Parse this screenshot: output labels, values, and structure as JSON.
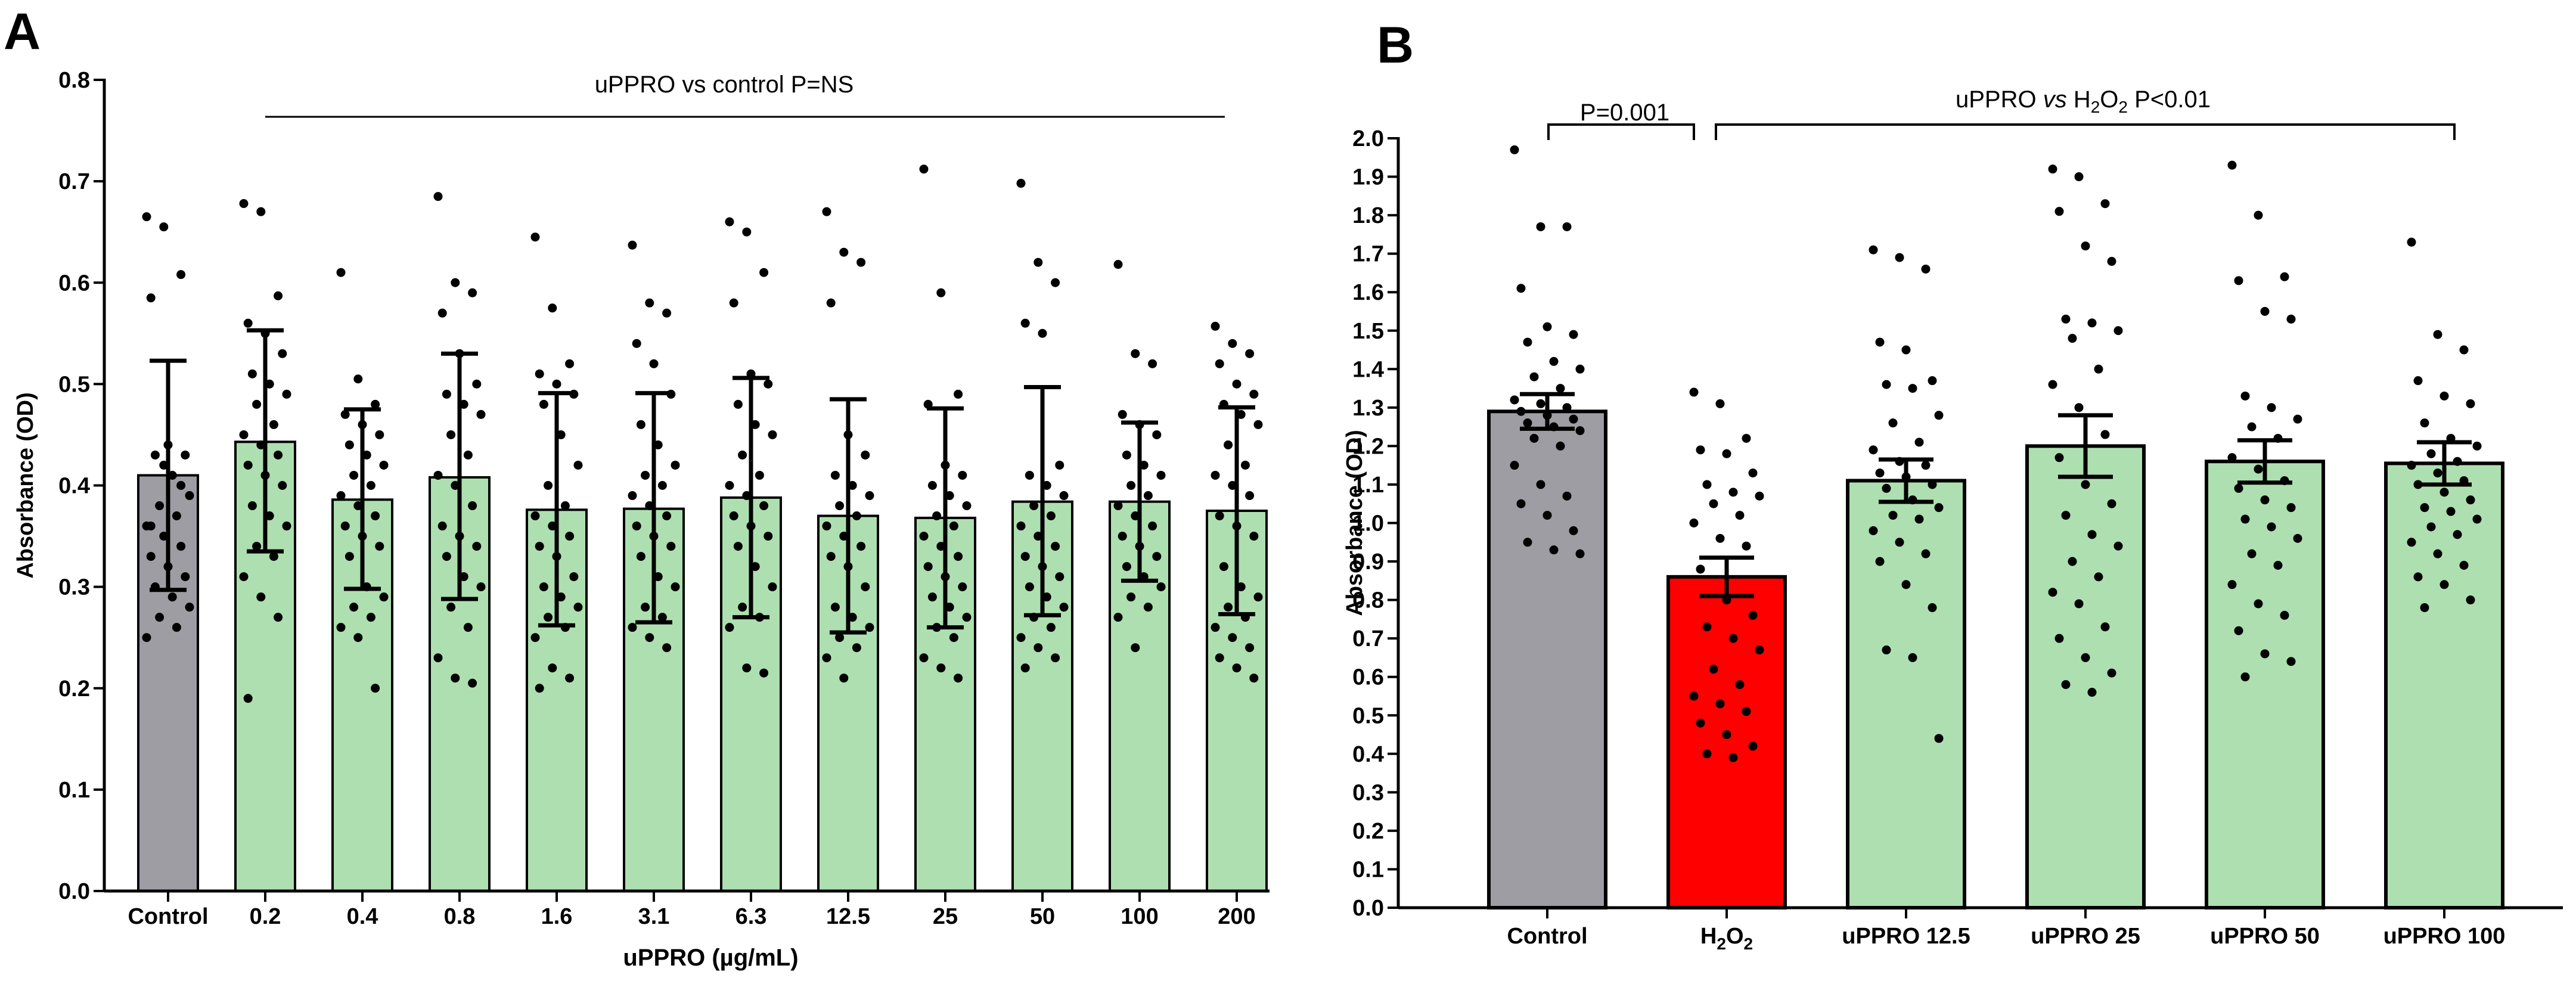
{
  "figure": {
    "panel_a_letter": "A",
    "panel_b_letter": "B"
  },
  "chart_data": [
    {
      "panel": "A",
      "type": "bar",
      "ylabel": "Absorbance (OD)",
      "xlabel": "uPPRO (µg/mL)",
      "ylim": [
        0,
        0.8
      ],
      "yticks": [
        "0.0",
        "0.1",
        "0.2",
        "0.3",
        "0.4",
        "0.5",
        "0.6",
        "0.7",
        "0.8"
      ],
      "categories": [
        "Control",
        "0.2",
        "0.4",
        "0.8",
        "1.6",
        "3.1",
        "6.3",
        "12.5",
        "25",
        "50",
        "100",
        "200"
      ],
      "values": [
        0.41,
        0.443,
        0.386,
        0.408,
        0.376,
        0.377,
        0.388,
        0.37,
        0.368,
        0.384,
        0.384,
        0.375
      ],
      "error_low": [
        0.297,
        0.335,
        0.298,
        0.288,
        0.262,
        0.265,
        0.27,
        0.255,
        0.26,
        0.272,
        0.306,
        0.273
      ],
      "error_high": [
        0.523,
        0.553,
        0.475,
        0.53,
        0.491,
        0.491,
        0.506,
        0.485,
        0.476,
        0.497,
        0.462,
        0.477
      ],
      "bar_colors": [
        "#9e9da3",
        "#aedfb0",
        "#aedfb0",
        "#aedfb0",
        "#aedfb0",
        "#aedfb0",
        "#aedfb0",
        "#aedfb0",
        "#aedfb0",
        "#aedfb0",
        "#aedfb0",
        "#aedfb0"
      ],
      "annotation": "uPPRO vs control P=NS",
      "points": [
        [
          0.665,
          0.655,
          0.608,
          0.585,
          0.44,
          0.43,
          0.43,
          0.41,
          0.39,
          0.38,
          0.37,
          0.36,
          0.35,
          0.34,
          0.33,
          0.32,
          0.31,
          0.3,
          0.29,
          0.28,
          0.27,
          0.26,
          0.25,
          0.42,
          0.4,
          0.36
        ],
        [
          0.678,
          0.67,
          0.587,
          0.56,
          0.55,
          0.53,
          0.51,
          0.5,
          0.49,
          0.48,
          0.46,
          0.45,
          0.44,
          0.43,
          0.42,
          0.41,
          0.4,
          0.38,
          0.37,
          0.36,
          0.34,
          0.33,
          0.31,
          0.29,
          0.27,
          0.19
        ],
        [
          0.61,
          0.505,
          0.48,
          0.47,
          0.46,
          0.45,
          0.44,
          0.43,
          0.42,
          0.41,
          0.4,
          0.39,
          0.38,
          0.37,
          0.36,
          0.35,
          0.34,
          0.33,
          0.3,
          0.29,
          0.28,
          0.27,
          0.26,
          0.25,
          0.2
        ],
        [
          0.685,
          0.6,
          0.59,
          0.57,
          0.53,
          0.5,
          0.49,
          0.48,
          0.47,
          0.45,
          0.43,
          0.41,
          0.4,
          0.38,
          0.36,
          0.35,
          0.34,
          0.33,
          0.31,
          0.3,
          0.28,
          0.26,
          0.23,
          0.21,
          0.205
        ],
        [
          0.645,
          0.575,
          0.52,
          0.51,
          0.5,
          0.49,
          0.48,
          0.45,
          0.42,
          0.4,
          0.38,
          0.37,
          0.36,
          0.35,
          0.34,
          0.33,
          0.31,
          0.3,
          0.29,
          0.28,
          0.27,
          0.26,
          0.25,
          0.22,
          0.21,
          0.2
        ],
        [
          0.637,
          0.58,
          0.57,
          0.54,
          0.52,
          0.49,
          0.46,
          0.44,
          0.42,
          0.41,
          0.4,
          0.39,
          0.38,
          0.37,
          0.36,
          0.35,
          0.34,
          0.33,
          0.31,
          0.3,
          0.28,
          0.27,
          0.26,
          0.25,
          0.24
        ],
        [
          0.66,
          0.65,
          0.61,
          0.58,
          0.51,
          0.5,
          0.48,
          0.46,
          0.45,
          0.43,
          0.41,
          0.4,
          0.39,
          0.38,
          0.37,
          0.36,
          0.35,
          0.34,
          0.32,
          0.3,
          0.28,
          0.27,
          0.26,
          0.22,
          0.215
        ],
        [
          0.67,
          0.63,
          0.62,
          0.58,
          0.45,
          0.43,
          0.41,
          0.4,
          0.39,
          0.38,
          0.37,
          0.36,
          0.35,
          0.34,
          0.33,
          0.32,
          0.3,
          0.28,
          0.27,
          0.26,
          0.25,
          0.24,
          0.23,
          0.21
        ],
        [
          0.712,
          0.59,
          0.49,
          0.48,
          0.42,
          0.41,
          0.4,
          0.39,
          0.38,
          0.37,
          0.36,
          0.35,
          0.34,
          0.33,
          0.32,
          0.31,
          0.3,
          0.29,
          0.28,
          0.27,
          0.26,
          0.25,
          0.23,
          0.22,
          0.21
        ],
        [
          0.698,
          0.62,
          0.6,
          0.56,
          0.55,
          0.42,
          0.41,
          0.4,
          0.39,
          0.38,
          0.37,
          0.36,
          0.35,
          0.34,
          0.33,
          0.32,
          0.31,
          0.3,
          0.29,
          0.28,
          0.27,
          0.26,
          0.25,
          0.24,
          0.23,
          0.22
        ],
        [
          0.618,
          0.53,
          0.52,
          0.47,
          0.46,
          0.45,
          0.43,
          0.42,
          0.41,
          0.4,
          0.39,
          0.38,
          0.37,
          0.36,
          0.35,
          0.34,
          0.33,
          0.32,
          0.31,
          0.3,
          0.29,
          0.28,
          0.27,
          0.24
        ],
        [
          0.557,
          0.54,
          0.53,
          0.52,
          0.5,
          0.49,
          0.48,
          0.47,
          0.46,
          0.44,
          0.42,
          0.41,
          0.4,
          0.39,
          0.37,
          0.36,
          0.35,
          0.32,
          0.3,
          0.29,
          0.28,
          0.27,
          0.26,
          0.25,
          0.24,
          0.23,
          0.22,
          0.21
        ]
      ]
    },
    {
      "panel": "B",
      "type": "bar",
      "ylabel": "Absorbance (OD)",
      "xlabel": "",
      "ylim": [
        0,
        2.0
      ],
      "yticks": [
        "0.0",
        "0.1",
        "0.2",
        "0.3",
        "0.4",
        "0.5",
        "0.6",
        "0.7",
        "0.8",
        "0.9",
        "1.0",
        "1.1",
        "1.2",
        "1.3",
        "1.4",
        "1.5",
        "1.6",
        "1.7",
        "1.8",
        "1.9",
        "2.0"
      ],
      "categories": [
        "Control",
        "H2O2",
        "uPPRO 12.5",
        "uPPRO 25",
        "uPPRO 50",
        "uPPRO 100"
      ],
      "values": [
        1.29,
        0.86,
        1.11,
        1.2,
        1.16,
        1.155
      ],
      "error_low": [
        1.245,
        0.81,
        1.055,
        1.12,
        1.105,
        1.1
      ],
      "error_high": [
        1.335,
        0.91,
        1.165,
        1.28,
        1.215,
        1.21
      ],
      "bar_colors": [
        "#9e9da3",
        "#ff0000",
        "#aedfb0",
        "#aedfb0",
        "#aedfb0",
        "#aedfb0"
      ],
      "annotations": {
        "left_bracket": "P=0.001",
        "right_bracket_prefix": "uPPRO ",
        "right_bracket_vs": "vs",
        "right_bracket_mid": " H",
        "right_bracket_sub1": "2",
        "right_bracket_o": "O",
        "right_bracket_sub2": "2",
        "right_bracket_suffix": " P<0.01"
      },
      "points": [
        [
          1.97,
          1.77,
          1.77,
          1.61,
          1.51,
          1.49,
          1.47,
          1.42,
          1.4,
          1.38,
          1.35,
          1.32,
          1.31,
          1.3,
          1.29,
          1.28,
          1.27,
          1.26,
          1.25,
          1.24,
          1.22,
          1.2,
          1.15,
          1.1,
          1.07,
          1.05,
          1.02,
          0.98,
          0.95,
          0.93,
          0.92
        ],
        [
          1.34,
          1.31,
          1.22,
          1.19,
          1.18,
          1.13,
          1.1,
          1.08,
          1.07,
          1.05,
          1.02,
          1.0,
          0.96,
          0.94,
          0.88,
          0.8,
          0.76,
          0.73,
          0.7,
          0.67,
          0.62,
          0.58,
          0.55,
          0.53,
          0.51,
          0.48,
          0.45,
          0.42,
          0.4,
          0.39
        ],
        [
          1.71,
          1.69,
          1.66,
          1.47,
          1.45,
          1.37,
          1.36,
          1.35,
          1.28,
          1.26,
          1.21,
          1.19,
          1.16,
          1.15,
          1.13,
          1.12,
          1.1,
          1.09,
          1.06,
          1.04,
          1.02,
          1.01,
          0.98,
          0.95,
          0.92,
          0.9,
          0.84,
          0.78,
          0.67,
          0.65,
          0.44
        ],
        [
          1.92,
          1.9,
          1.83,
          1.81,
          1.72,
          1.68,
          1.53,
          1.52,
          1.5,
          1.48,
          1.4,
          1.36,
          1.3,
          1.23,
          1.17,
          1.1,
          1.05,
          1.02,
          0.97,
          0.94,
          0.9,
          0.86,
          0.82,
          0.79,
          0.73,
          0.7,
          0.65,
          0.61,
          0.58,
          0.56
        ],
        [
          1.93,
          1.8,
          1.64,
          1.63,
          1.55,
          1.53,
          1.33,
          1.3,
          1.27,
          1.25,
          1.22,
          1.17,
          1.14,
          1.11,
          1.09,
          1.06,
          1.04,
          1.01,
          0.99,
          0.96,
          0.92,
          0.89,
          0.84,
          0.79,
          0.76,
          0.72,
          0.66,
          0.64,
          0.6
        ],
        [
          1.73,
          1.49,
          1.45,
          1.37,
          1.33,
          1.31,
          1.26,
          1.22,
          1.2,
          1.18,
          1.16,
          1.15,
          1.13,
          1.11,
          1.1,
          1.08,
          1.06,
          1.04,
          1.03,
          1.01,
          0.99,
          0.97,
          0.95,
          0.92,
          0.89,
          0.86,
          0.84,
          0.8,
          0.78
        ]
      ]
    }
  ]
}
